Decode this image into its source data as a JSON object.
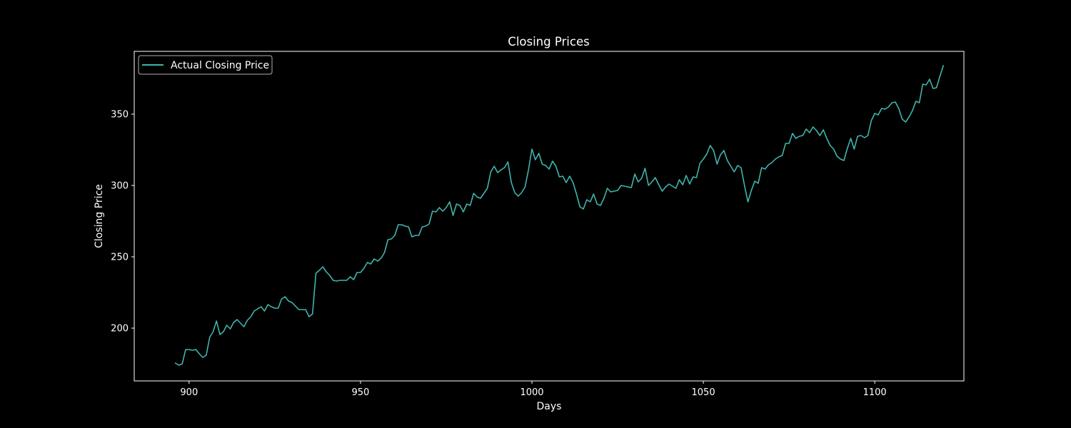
{
  "chart_data": {
    "type": "line",
    "title": "Closing Prices",
    "xlabel": "Days",
    "ylabel": "Closing Price",
    "xlim": [
      884,
      1126
    ],
    "ylim": [
      163,
      394
    ],
    "xticks": [
      900,
      950,
      1000,
      1050,
      1100
    ],
    "yticks": [
      200,
      250,
      300,
      350
    ],
    "grid": false,
    "legend_position": "upper-left",
    "background": "#000000",
    "series": [
      {
        "name": "Actual Closing Price",
        "color": "#3fb5ad",
        "x": [
          896,
          897,
          898,
          899,
          900,
          901,
          902,
          903,
          904,
          905,
          906,
          907,
          908,
          909,
          910,
          911,
          912,
          913,
          914,
          915,
          916,
          917,
          918,
          919,
          920,
          921,
          922,
          923,
          924,
          925,
          926,
          927,
          928,
          929,
          930,
          931,
          932,
          933,
          934,
          935,
          936,
          937,
          938,
          939,
          940,
          941,
          942,
          943,
          944,
          945,
          946,
          947,
          948,
          949,
          950,
          951,
          952,
          953,
          954,
          955,
          956,
          957,
          958,
          959,
          960,
          961,
          962,
          963,
          964,
          965,
          966,
          967,
          968,
          969,
          970,
          971,
          972,
          973,
          974,
          975,
          976,
          977,
          978,
          979,
          980,
          981,
          982,
          983,
          984,
          985,
          986,
          987,
          988,
          989,
          990,
          991,
          992,
          993,
          994,
          995,
          996,
          997,
          998,
          999,
          1000,
          1001,
          1002,
          1003,
          1004,
          1005,
          1006,
          1007,
          1008,
          1009,
          1010,
          1011,
          1012,
          1013,
          1014,
          1015,
          1016,
          1017,
          1018,
          1019,
          1020,
          1021,
          1022,
          1023,
          1024,
          1025,
          1026,
          1027,
          1028,
          1029,
          1030,
          1031,
          1032,
          1033,
          1034,
          1035,
          1036,
          1037,
          1038,
          1039,
          1040,
          1041,
          1042,
          1043,
          1044,
          1045,
          1046,
          1047,
          1048,
          1049,
          1050,
          1051,
          1052,
          1053,
          1054,
          1055,
          1056,
          1057,
          1058,
          1059,
          1060,
          1061,
          1062,
          1063,
          1064,
          1065,
          1066,
          1067,
          1068,
          1069,
          1070,
          1071,
          1072,
          1073,
          1074,
          1075,
          1076,
          1077,
          1078,
          1079,
          1080,
          1081,
          1082,
          1083,
          1084,
          1085,
          1086,
          1087,
          1088,
          1089,
          1090,
          1091,
          1092,
          1093,
          1094,
          1095,
          1096,
          1097,
          1098,
          1099,
          1100,
          1101,
          1102,
          1103,
          1104,
          1105,
          1106,
          1107,
          1108,
          1109,
          1110,
          1111,
          1112,
          1113,
          1114,
          1115,
          1116,
          1117,
          1118,
          1119,
          1120
        ],
        "values": [
          175.5,
          174,
          175,
          185,
          185,
          184.5,
          185,
          182,
          179.5,
          181,
          193.5,
          197.5,
          205,
          195.5,
          197.5,
          202,
          199.5,
          204,
          206,
          203.5,
          201,
          205.5,
          208,
          212,
          213.5,
          215,
          212,
          216.5,
          215,
          214,
          214,
          220.5,
          222,
          219,
          218,
          215.5,
          213,
          213,
          213,
          208,
          210,
          238.5,
          240.5,
          243,
          239.5,
          237,
          233.5,
          233,
          233.5,
          233.5,
          233.5,
          236,
          234,
          239,
          239,
          242,
          246,
          245,
          248.5,
          247,
          249,
          253,
          262,
          262.5,
          265,
          272.5,
          272.5,
          271.5,
          271,
          264,
          265,
          265,
          271,
          271.5,
          273,
          282,
          281.5,
          284.5,
          282,
          284.5,
          288.5,
          279,
          287,
          286,
          281.5,
          287,
          286,
          294.5,
          292,
          291,
          294.5,
          298,
          309.5,
          313.5,
          309,
          311,
          312.5,
          316.5,
          302,
          295,
          292.5,
          295,
          299,
          311,
          325.5,
          318,
          322.5,
          315,
          314,
          311.5,
          317,
          313.5,
          306,
          306.5,
          302,
          306.5,
          302,
          294,
          285,
          283.5,
          290,
          288.5,
          294,
          287,
          286,
          291,
          298,
          295.5,
          296,
          296.5,
          300,
          299.5,
          299,
          298.5,
          308,
          302.5,
          305,
          312,
          300,
          302.5,
          305.5,
          300.5,
          296,
          299,
          301,
          299.5,
          298,
          304,
          300.5,
          307,
          301,
          306,
          305.5,
          315.5,
          318.5,
          322,
          328,
          324.5,
          315,
          321.5,
          324.5,
          317.5,
          313.5,
          309.5,
          314,
          312.5,
          300,
          288.5,
          296.5,
          303,
          301.5,
          312.5,
          311.5,
          314.5,
          316,
          318.5,
          320,
          321,
          329.5,
          329.5,
          336.5,
          333,
          334.5,
          335,
          339.5,
          337,
          341,
          338.5,
          335,
          339,
          333,
          328,
          325.5,
          320.5,
          318.5,
          317.5,
          326,
          333,
          325.5,
          334.5,
          335,
          333.5,
          335,
          345.5,
          350.5,
          349.5,
          354,
          353.5,
          355,
          358,
          358.5,
          354,
          346.5,
          344.5,
          348,
          352.5,
          359,
          358,
          371,
          370.5,
          374.5,
          368,
          368.5,
          376.5,
          384
        ]
      }
    ]
  }
}
